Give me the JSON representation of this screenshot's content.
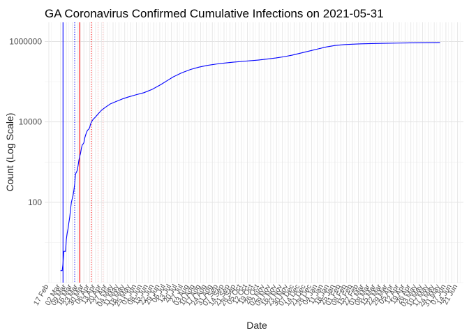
{
  "chart_data": {
    "type": "line",
    "title": "GA Coronavirus Confirmed Cumulative Infections on 2021-05-31",
    "xlabel": "Date",
    "ylabel": "Count (Log Scale)",
    "y_scale": "log10",
    "ylim": [
      1,
      3000000
    ],
    "y_ticks": [
      100,
      10000,
      1000000
    ],
    "y_tick_labels": [
      "100",
      "10000",
      "1000000"
    ],
    "xlim": [
      "2020-02-12",
      "2021-06-28"
    ],
    "x_tick_labels": [
      {
        "date": "2020-02-17",
        "label": "17 Feb"
      },
      {
        "date": "2020-03-02",
        "label": "02 Mar"
      },
      {
        "date": "2020-03-09",
        "label": "09 Mar"
      },
      {
        "date": "2020-03-16",
        "label": "16 Mar"
      },
      {
        "date": "2020-03-23",
        "label": "23 Mar"
      },
      {
        "date": "2020-03-30",
        "label": "30 Mar"
      },
      {
        "date": "2020-04-06",
        "label": "06 Apr"
      },
      {
        "date": "2020-04-13",
        "label": "13 Apr"
      },
      {
        "date": "2020-04-20",
        "label": "20 Apr"
      },
      {
        "date": "2020-04-27",
        "label": "27 Apr"
      },
      {
        "date": "2020-05-04",
        "label": "04 May"
      },
      {
        "date": "2020-05-11",
        "label": "11 May"
      },
      {
        "date": "2020-05-18",
        "label": "18 May"
      },
      {
        "date": "2020-05-25",
        "label": "25 May"
      },
      {
        "date": "2020-06-01",
        "label": "01 Jun"
      },
      {
        "date": "2020-06-08",
        "label": "08 Jun"
      },
      {
        "date": "2020-06-15",
        "label": "15 Jun"
      },
      {
        "date": "2020-06-22",
        "label": "22 Jun"
      },
      {
        "date": "2020-06-29",
        "label": "29 Jun"
      },
      {
        "date": "2020-07-06",
        "label": "06 Jul"
      },
      {
        "date": "2020-07-13",
        "label": "13 Jul"
      },
      {
        "date": "2020-07-20",
        "label": "20 Jul"
      },
      {
        "date": "2020-07-27",
        "label": "27 Jul"
      },
      {
        "date": "2020-08-03",
        "label": "03 Aug"
      },
      {
        "date": "2020-08-10",
        "label": "10 Aug"
      },
      {
        "date": "2020-08-17",
        "label": "17 Aug"
      },
      {
        "date": "2020-08-24",
        "label": "24 Aug"
      },
      {
        "date": "2020-08-31",
        "label": "31 Aug"
      },
      {
        "date": "2020-09-07",
        "label": "07 Sep"
      },
      {
        "date": "2020-09-14",
        "label": "14 Sep"
      },
      {
        "date": "2020-09-21",
        "label": "21 Sep"
      },
      {
        "date": "2020-09-28",
        "label": "28 Sep"
      },
      {
        "date": "2020-10-05",
        "label": "05 Oct"
      },
      {
        "date": "2020-10-12",
        "label": "12 Oct"
      },
      {
        "date": "2020-10-19",
        "label": "19 Oct"
      },
      {
        "date": "2020-10-26",
        "label": "26 Oct"
      },
      {
        "date": "2020-11-02",
        "label": "02 Nov"
      },
      {
        "date": "2020-11-09",
        "label": "09 Nov"
      },
      {
        "date": "2020-11-16",
        "label": "16 Nov"
      },
      {
        "date": "2020-11-23",
        "label": "23 Nov"
      },
      {
        "date": "2020-11-30",
        "label": "30 Nov"
      },
      {
        "date": "2020-12-07",
        "label": "07 Dec"
      },
      {
        "date": "2020-12-14",
        "label": "14 Dec"
      },
      {
        "date": "2020-12-21",
        "label": "21 Dec"
      },
      {
        "date": "2020-12-28",
        "label": "28 Dec"
      },
      {
        "date": "2021-01-04",
        "label": "04 Jan"
      },
      {
        "date": "2021-01-11",
        "label": "11 Jan"
      },
      {
        "date": "2021-01-18",
        "label": "18 Jan"
      },
      {
        "date": "2021-01-25",
        "label": "25 Jan"
      },
      {
        "date": "2021-02-01",
        "label": "01 Feb"
      },
      {
        "date": "2021-02-08",
        "label": "08 Feb"
      },
      {
        "date": "2021-02-15",
        "label": "15 Feb"
      },
      {
        "date": "2021-02-22",
        "label": "22 Feb"
      },
      {
        "date": "2021-03-01",
        "label": "01 Mar"
      },
      {
        "date": "2021-03-08",
        "label": "08 Mar"
      },
      {
        "date": "2021-03-15",
        "label": "15 Mar"
      },
      {
        "date": "2021-03-22",
        "label": "22 Mar"
      },
      {
        "date": "2021-03-29",
        "label": "29 Mar"
      },
      {
        "date": "2021-04-05",
        "label": "05 Apr"
      },
      {
        "date": "2021-04-12",
        "label": "12 Apr"
      },
      {
        "date": "2021-04-19",
        "label": "19 Apr"
      },
      {
        "date": "2021-04-26",
        "label": "26 Apr"
      },
      {
        "date": "2021-05-03",
        "label": "03 May"
      },
      {
        "date": "2021-05-10",
        "label": "10 May"
      },
      {
        "date": "2021-05-17",
        "label": "17 May"
      },
      {
        "date": "2021-05-24",
        "label": "24 May"
      },
      {
        "date": "2021-05-31",
        "label": "31 May"
      },
      {
        "date": "2021-06-07",
        "label": "07 Jun"
      },
      {
        "date": "2021-06-14",
        "label": "14 Jun"
      },
      {
        "date": "2021-06-21",
        "label": "21 Jun"
      }
    ],
    "series": [
      {
        "color": "#0000ff",
        "points": [
          [
            "2020-03-02",
            2
          ],
          [
            "2020-03-04",
            2
          ],
          [
            "2020-03-05",
            3
          ],
          [
            "2020-03-06",
            6
          ],
          [
            "2020-03-07",
            6
          ],
          [
            "2020-03-08",
            6
          ],
          [
            "2020-03-09",
            12
          ],
          [
            "2020-03-10",
            17
          ],
          [
            "2020-03-11",
            22
          ],
          [
            "2020-03-12",
            31
          ],
          [
            "2020-03-13",
            42
          ],
          [
            "2020-03-14",
            66
          ],
          [
            "2020-03-15",
            99
          ],
          [
            "2020-03-16",
            121
          ],
          [
            "2020-03-17",
            146
          ],
          [
            "2020-03-18",
            197
          ],
          [
            "2020-03-19",
            287
          ],
          [
            "2020-03-20",
            507
          ],
          [
            "2020-03-21",
            555
          ],
          [
            "2020-03-22",
            620
          ],
          [
            "2020-03-23",
            800
          ],
          [
            "2020-03-24",
            1097
          ],
          [
            "2020-03-25",
            1387
          ],
          [
            "2020-03-26",
            1643
          ],
          [
            "2020-03-27",
            2198
          ],
          [
            "2020-03-28",
            2651
          ],
          [
            "2020-03-29",
            2809
          ],
          [
            "2020-03-30",
            3032
          ],
          [
            "2020-03-31",
            3929
          ],
          [
            "2020-04-01",
            4638
          ],
          [
            "2020-04-02",
            5348
          ],
          [
            "2020-04-03",
            5967
          ],
          [
            "2020-04-04",
            6383
          ],
          [
            "2020-04-05",
            6647
          ],
          [
            "2020-04-06",
            7314
          ],
          [
            "2020-04-07",
            8818
          ],
          [
            "2020-04-08",
            9901
          ],
          [
            "2020-04-10",
            11483
          ],
          [
            "2020-04-13",
            13315
          ],
          [
            "2020-04-16",
            15669
          ],
          [
            "2020-04-20",
            19407
          ],
          [
            "2020-04-25",
            23216
          ],
          [
            "2020-05-01",
            28196
          ],
          [
            "2020-05-08",
            32445
          ],
          [
            "2020-05-15",
            37147
          ],
          [
            "2020-05-22",
            41482
          ],
          [
            "2020-06-01",
            47618
          ],
          [
            "2020-06-10",
            53249
          ],
          [
            "2020-06-20",
            64701
          ],
          [
            "2020-06-30",
            84237
          ],
          [
            "2020-07-08",
            106727
          ],
          [
            "2020-07-15",
            131275
          ],
          [
            "2020-07-25",
            165188
          ],
          [
            "2020-08-05",
            201713
          ],
          [
            "2020-08-15",
            230210
          ],
          [
            "2020-08-25",
            254840
          ],
          [
            "2020-09-05",
            275213
          ],
          [
            "2020-09-15",
            291519
          ],
          [
            "2020-09-25",
            306542
          ],
          [
            "2020-10-05",
            318026
          ],
          [
            "2020-10-15",
            331182
          ],
          [
            "2020-10-25",
            346054
          ],
          [
            "2020-11-05",
            366475
          ],
          [
            "2020-11-15",
            389227
          ],
          [
            "2020-11-25",
            418677
          ],
          [
            "2020-12-05",
            459165
          ],
          [
            "2020-12-15",
            515306
          ],
          [
            "2020-12-25",
            577406
          ],
          [
            "2021-01-05",
            656210
          ],
          [
            "2021-01-15",
            735215
          ],
          [
            "2021-01-25",
            795287
          ],
          [
            "2021-02-05",
            835414
          ],
          [
            "2021-02-15",
            858001
          ],
          [
            "2021-02-25",
            873815
          ],
          [
            "2021-03-10",
            887562
          ],
          [
            "2021-03-25",
            899867
          ],
          [
            "2021-04-10",
            913205
          ],
          [
            "2021-04-25",
            925108
          ],
          [
            "2021-05-10",
            935000
          ],
          [
            "2021-05-31",
            942000
          ]
        ]
      }
    ],
    "reference_lines": [
      {
        "date": "2020-03-05",
        "color": "#0000ff",
        "style": "solid"
      },
      {
        "date": "2020-03-19",
        "color": "#0000ff",
        "style": "dotted"
      },
      {
        "date": "2020-03-25",
        "color": "#ff0000",
        "style": "solid"
      },
      {
        "date": "2020-04-08",
        "color": "#ff0000",
        "style": "dotted"
      },
      {
        "date": "2020-04-16",
        "color": "#ffb3b3",
        "style": "dotted"
      },
      {
        "date": "2020-04-22",
        "color": "#ffb3b3",
        "style": "dotted"
      }
    ],
    "grid": true,
    "legend": "none",
    "colors": {
      "grid_major": "#e3e3e3",
      "grid_minor": "#f1f1f1",
      "line": "#0000ff"
    }
  }
}
